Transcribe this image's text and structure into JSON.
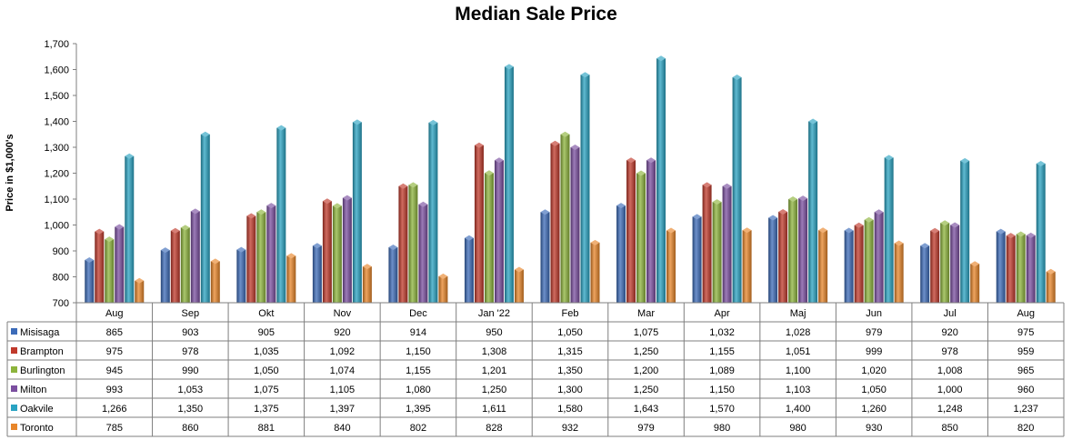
{
  "chart_data": {
    "type": "bar",
    "title": "Median Sale Price",
    "ylabel": "Price in $1,000's",
    "xlabel": "",
    "ylim": [
      700,
      1700
    ],
    "yticks": [
      700,
      800,
      900,
      1000,
      1100,
      1200,
      1300,
      1400,
      1500,
      1600,
      1700
    ],
    "ytick_labels": [
      "700",
      "800",
      "900",
      "1,000",
      "1,100",
      "1,200",
      "1,300",
      "1,400",
      "1,500",
      "1,600",
      "1,700"
    ],
    "categories": [
      "Aug",
      "Sep",
      "Okt",
      "Nov",
      "Dec",
      "Jan '22",
      "Feb",
      "Mar",
      "Apr",
      "Maj",
      "Jun",
      "Jul",
      "Aug"
    ],
    "legend_position": "data table",
    "grid": false,
    "series": [
      {
        "name": "Misisaga",
        "color": "#3c6bb8",
        "values": [
          865,
          903,
          905,
          920,
          914,
          950,
          1050,
          1075,
          1032,
          1028,
          979,
          920,
          975
        ],
        "labels": [
          "865",
          "903",
          "905",
          "920",
          "914",
          "950",
          "1,050",
          "1,075",
          "1,032",
          "1,028",
          "979",
          "920",
          "975"
        ]
      },
      {
        "name": "Brampton",
        "color": "#c0392b",
        "values": [
          975,
          978,
          1035,
          1092,
          1150,
          1308,
          1315,
          1250,
          1155,
          1051,
          999,
          978,
          959
        ],
        "labels": [
          "975",
          "978",
          "1,035",
          "1,092",
          "1,150",
          "1,308",
          "1,315",
          "1,250",
          "1,155",
          "1,051",
          "999",
          "978",
          "959"
        ]
      },
      {
        "name": "Burlington",
        "color": "#8db43c",
        "values": [
          945,
          990,
          1050,
          1074,
          1155,
          1201,
          1350,
          1200,
          1089,
          1100,
          1020,
          1008,
          965
        ],
        "labels": [
          "945",
          "990",
          "1,050",
          "1,074",
          "1,155",
          "1,201",
          "1,350",
          "1,200",
          "1,089",
          "1,100",
          "1,020",
          "1,008",
          "965"
        ]
      },
      {
        "name": "Milton",
        "color": "#7b4fa0",
        "values": [
          993,
          1053,
          1075,
          1105,
          1080,
          1250,
          1300,
          1250,
          1150,
          1103,
          1050,
          1000,
          960
        ],
        "labels": [
          "993",
          "1,053",
          "1,075",
          "1,105",
          "1,080",
          "1,250",
          "1,300",
          "1,250",
          "1,150",
          "1,103",
          "1,050",
          "1,000",
          "960"
        ]
      },
      {
        "name": "Oakvile",
        "color": "#2aa3c2",
        "values": [
          1266,
          1350,
          1375,
          1397,
          1395,
          1611,
          1580,
          1643,
          1570,
          1400,
          1260,
          1248,
          1237
        ],
        "labels": [
          "1,266",
          "1,350",
          "1,375",
          "1,397",
          "1,395",
          "1,611",
          "1,580",
          "1,643",
          "1,570",
          "1,400",
          "1,260",
          "1,248",
          "1,237"
        ]
      },
      {
        "name": "Toronto",
        "color": "#e8862a",
        "values": [
          785,
          860,
          881,
          840,
          802,
          828,
          932,
          979,
          980,
          980,
          930,
          850,
          820
        ],
        "labels": [
          "785",
          "860",
          "881",
          "840",
          "802",
          "828",
          "932",
          "979",
          "980",
          "980",
          "930",
          "850",
          "820"
        ]
      }
    ]
  }
}
